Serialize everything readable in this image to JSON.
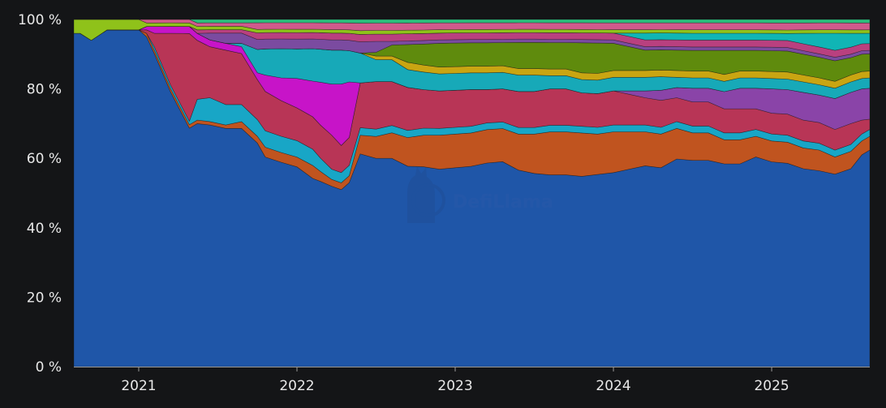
{
  "chart_data": {
    "type": "area",
    "stacked": true,
    "normalized": true,
    "title": "",
    "xlabel": "",
    "ylabel": "",
    "watermark": "DefiLlama",
    "y_ticks": [
      "0 %",
      "20 %",
      "40 %",
      "60 %",
      "80 %",
      "100 %"
    ],
    "x_ticks": [
      "2021",
      "2022",
      "2023",
      "2024",
      "2025"
    ],
    "ylim": [
      0,
      100
    ],
    "xlim": [
      2020.59,
      2025.62
    ],
    "x": [
      2020.59,
      2020.63,
      2020.7,
      2020.8,
      2020.9,
      2021.0,
      2021.05,
      2021.1,
      2021.2,
      2021.32,
      2021.37,
      2021.45,
      2021.55,
      2021.65,
      2021.75,
      2021.8,
      2021.9,
      2022.0,
      2022.1,
      2022.15,
      2022.22,
      2022.28,
      2022.33,
      2022.4,
      2022.5,
      2022.6,
      2022.7,
      2022.8,
      2022.9,
      2023.0,
      2023.1,
      2023.2,
      2023.3,
      2023.4,
      2023.5,
      2023.6,
      2023.7,
      2023.8,
      2023.9,
      2024.0,
      2024.1,
      2024.2,
      2024.3,
      2024.4,
      2024.5,
      2024.6,
      2024.7,
      2024.8,
      2024.9,
      2025.0,
      2025.1,
      2025.2,
      2025.3,
      2025.4,
      2025.5,
      2025.57,
      2025.62
    ],
    "series": [
      {
        "color": "#1f56a8",
        "values": [
          96,
          96,
          94,
          97,
          97,
          97,
          95,
          90,
          80,
          68,
          70,
          71,
          70,
          70,
          67,
          64,
          63,
          61,
          58,
          56,
          53,
          52,
          53,
          57,
          57,
          57,
          56,
          57,
          58,
          59,
          60,
          61,
          62,
          60,
          59,
          58,
          58,
          57,
          57,
          57,
          58,
          59,
          59,
          61,
          60,
          60,
          59,
          59,
          61,
          59,
          58,
          57,
          57,
          56,
          57,
          61,
          63
        ]
      },
      {
        "color": "#c0541f",
        "values": [
          0,
          0,
          0,
          0,
          0,
          0,
          1,
          1,
          1,
          1,
          1,
          1,
          1,
          2,
          2,
          3,
          3,
          3,
          4,
          3,
          2,
          2,
          2,
          5,
          6,
          7,
          8,
          9,
          10,
          10,
          10,
          10,
          10,
          11,
          12,
          13,
          13,
          13,
          12,
          12,
          11,
          10,
          10,
          9,
          8,
          8,
          7,
          7,
          6,
          6,
          6,
          6,
          6,
          5,
          5,
          4,
          4
        ]
      },
      {
        "color": "#18a6c6",
        "values": [
          0,
          0,
          0,
          0,
          0,
          0,
          0,
          1,
          1,
          1,
          6,
          7,
          6,
          5,
          5,
          5,
          5,
          5,
          5,
          4,
          3,
          3,
          3,
          2,
          2,
          2,
          2,
          2,
          2,
          2,
          2,
          2,
          2,
          2,
          2,
          2,
          2,
          2,
          2,
          2,
          2,
          2,
          2,
          2,
          2,
          2,
          2,
          2,
          2,
          2,
          2,
          2,
          2,
          2,
          2,
          2,
          2
        ]
      },
      {
        "color": "#b83556",
        "values": [
          0,
          0,
          0,
          0,
          0,
          0,
          1,
          4,
          15,
          25,
          17,
          15,
          16,
          15,
          12,
          12,
          11,
          10,
          10,
          10,
          10,
          8,
          8,
          12,
          13,
          12,
          12,
          11,
          11,
          11,
          11,
          10,
          10,
          11,
          11,
          11,
          11,
          10,
          10,
          10,
          9,
          8,
          8,
          7,
          7,
          7,
          7,
          7,
          6,
          6,
          6,
          6,
          6,
          6,
          6,
          4,
          3
        ]
      },
      {
        "color": "#8a44a8",
        "values": [
          0,
          0,
          0,
          0,
          0,
          0,
          0,
          0,
          0,
          0,
          0,
          0,
          0,
          0,
          0,
          0,
          0,
          0,
          0,
          0,
          0,
          0,
          0,
          0,
          0,
          0,
          0,
          0,
          0,
          0,
          0,
          0,
          0,
          0,
          0,
          0,
          0,
          0,
          0,
          0,
          1,
          2,
          3,
          3,
          4,
          4,
          5,
          6,
          6,
          7,
          7,
          8,
          8,
          9,
          9,
          9,
          9
        ]
      },
      {
        "color": "#c714c8",
        "values": [
          0,
          0,
          0,
          0,
          0,
          0,
          1,
          2,
          2,
          2,
          2,
          2,
          2,
          2,
          2,
          5,
          7,
          9,
          11,
          13,
          15,
          18,
          16,
          0,
          0,
          0,
          0,
          0,
          0,
          0,
          0,
          0,
          0,
          0,
          0,
          0,
          0,
          0,
          0,
          0,
          0,
          0,
          0,
          0,
          0,
          0,
          0,
          0,
          0,
          0,
          0,
          0,
          0,
          0,
          0,
          0,
          0
        ]
      },
      {
        "color": "#17a9b8",
        "values": [
          0,
          0,
          0,
          0,
          0,
          0,
          0,
          0,
          0,
          0,
          0,
          0,
          0,
          1,
          7,
          8,
          9,
          9,
          10,
          10,
          10,
          10,
          9,
          8,
          6,
          6,
          5,
          5,
          5,
          5,
          5,
          5,
          5,
          5,
          5,
          4,
          4,
          4,
          4,
          4,
          4,
          4,
          4,
          3,
          3,
          3,
          3,
          3,
          3,
          3,
          3,
          3,
          3,
          3,
          3,
          3,
          3
        ]
      },
      {
        "color": "#c9a512",
        "values": [
          0,
          0,
          0,
          0,
          0,
          0,
          0,
          0,
          0,
          0,
          0,
          0,
          0,
          0,
          0,
          0,
          0,
          0,
          0,
          0,
          0,
          0,
          0,
          0,
          1,
          1,
          2,
          2,
          2,
          2,
          2,
          2,
          2,
          2,
          2,
          2,
          2,
          2,
          2,
          2,
          2,
          2,
          2,
          2,
          2,
          2,
          2,
          2,
          2,
          2,
          2,
          2,
          2,
          2,
          2,
          2,
          2
        ]
      },
      {
        "color": "#5f8b0d",
        "values": [
          0,
          0,
          0,
          0,
          0,
          0,
          0,
          0,
          0,
          0,
          0,
          0,
          0,
          0,
          0,
          0,
          0,
          0,
          0,
          0,
          0,
          0,
          0,
          0,
          1,
          3,
          5,
          6,
          7,
          7,
          7,
          7,
          7,
          8,
          8,
          8,
          8,
          9,
          9,
          8,
          7,
          6,
          6,
          6,
          6,
          6,
          7,
          6,
          6,
          6,
          6,
          6,
          6,
          6,
          5,
          5,
          5
        ]
      },
      {
        "color": "#7b4ba0",
        "values": [
          0,
          0,
          0,
          0,
          0,
          0,
          0,
          0,
          0,
          0,
          0,
          2,
          3,
          3,
          3,
          3,
          3,
          3,
          3,
          3,
          3,
          3,
          3,
          3,
          3,
          1,
          1,
          1,
          1,
          1,
          1,
          1,
          1,
          1,
          1,
          1,
          1,
          1,
          1,
          1,
          1,
          1,
          1,
          1,
          1,
          1,
          1,
          1,
          1,
          1,
          1,
          1,
          1,
          1,
          1,
          1,
          1
        ]
      },
      {
        "color": "#b9407f",
        "values": [
          0,
          0,
          0,
          0,
          0,
          0,
          0,
          0,
          0,
          0,
          1,
          1,
          1,
          1,
          2,
          2,
          2,
          2,
          2,
          2,
          2,
          2,
          2,
          2,
          2,
          2,
          2,
          2,
          2,
          2,
          2,
          2,
          2,
          2,
          2,
          2,
          2,
          2,
          2,
          2,
          2,
          2,
          2,
          2,
          2,
          2,
          2,
          2,
          2,
          2,
          2,
          2,
          2,
          2,
          2,
          2,
          2
        ]
      },
      {
        "color": "#10b5b5",
        "values": [
          0,
          0,
          0,
          0,
          0,
          0,
          0,
          0,
          0,
          0,
          0,
          0,
          0,
          0,
          0,
          0,
          0,
          0,
          0,
          0,
          0,
          0,
          0,
          0,
          0,
          0,
          0,
          0,
          0,
          0,
          0,
          0,
          0,
          0,
          0,
          0,
          0,
          0,
          0,
          0,
          1,
          2,
          2,
          2,
          2,
          2,
          2,
          2,
          2,
          2,
          2,
          3,
          4,
          5,
          4,
          3,
          3
        ]
      },
      {
        "color": "#8fc21a",
        "values": [
          4,
          4,
          6,
          3,
          3,
          3,
          1,
          1,
          1,
          1,
          1,
          1,
          1,
          1,
          1,
          1,
          1,
          1,
          1,
          1,
          1,
          1,
          1,
          1,
          1,
          1,
          1,
          1,
          1,
          1,
          1,
          1,
          1,
          1,
          1,
          1,
          1,
          1,
          1,
          1,
          1,
          1,
          1,
          1,
          1,
          1,
          1,
          1,
          1,
          1,
          1,
          1,
          1,
          1,
          1,
          1,
          1
        ]
      },
      {
        "color": "#d05a8c",
        "values": [
          0,
          0,
          0,
          0,
          0,
          0,
          1,
          1,
          1,
          1,
          1,
          1,
          1,
          1,
          2,
          2,
          2,
          2,
          2,
          2,
          2,
          2,
          2,
          2,
          2,
          2,
          2,
          2,
          2,
          2,
          2,
          2,
          2,
          2,
          2,
          2,
          2,
          2,
          2,
          2,
          2,
          2,
          2,
          2,
          2,
          2,
          2,
          2,
          2,
          2,
          2,
          2,
          2,
          2,
          2,
          2,
          2
        ]
      },
      {
        "color": "#2bbf7c",
        "values": [
          0,
          0,
          0,
          0,
          0,
          0,
          0,
          0,
          0,
          0,
          1,
          1,
          1,
          1,
          1,
          1,
          1,
          1,
          1,
          1,
          1,
          1,
          1,
          1,
          1,
          1,
          1,
          1,
          1,
          1,
          1,
          1,
          1,
          1,
          1,
          1,
          1,
          1,
          1,
          1,
          1,
          1,
          1,
          1,
          1,
          1,
          1,
          1,
          1,
          1,
          1,
          1,
          1,
          1,
          1,
          1,
          1
        ]
      }
    ]
  }
}
